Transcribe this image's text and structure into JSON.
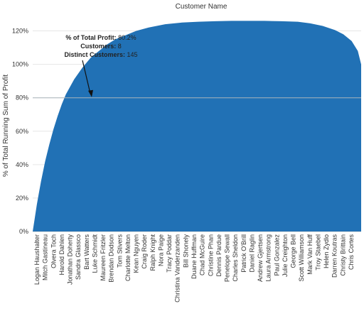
{
  "chart_data": {
    "type": "area",
    "title": "Customer Name",
    "xlabel": "",
    "ylabel": "% of Total Running Sum of Profit",
    "ylim": [
      0,
      130
    ],
    "yticks": [
      0,
      20,
      40,
      60,
      80,
      100,
      120
    ],
    "ytick_labels": [
      "0%",
      "20%",
      "40%",
      "60%",
      "80%",
      "100%",
      "120%"
    ],
    "reference_line": 80,
    "color": "#2171b5",
    "reference_line_color": "#a9b4bb",
    "x_labels": [
      "Logan Haushalter",
      "Mitch Gastineau",
      "Olvera Toch",
      "Harold Dahlen",
      "Jonathan Doherty",
      "Sandra Glassco",
      "Bart Watters",
      "Luke Schmidt",
      "Maureen Fritzler",
      "Brendan Dodson",
      "Tom Stivers",
      "Charlotte Melton",
      "Kean Nguyen",
      "Craig Roder",
      "Ralph Knight",
      "Nora Paige",
      "Tracy Poddar",
      "Christina Vanderzanden",
      "Bill Shonely",
      "Duane Huffman",
      "Chad McGuire",
      "Christine Phan",
      "Dennis Pardue",
      "Penelope Sewall",
      "Charles Sheldon",
      "Patrick O'Brill",
      "Daniel Raglin",
      "Andrew Gjertsen",
      "Laura Armstrong",
      "Paul Gonzalez",
      "Julie Creighton",
      "George Bell",
      "Scott Williamson",
      "Mark Van Huff",
      "Troy Staebel",
      "Helen Zydlo",
      "Darren Koutras",
      "Christy Brittain",
      "Chris Cortes"
    ],
    "x": [
      0,
      5,
      10,
      15,
      20,
      25,
      30,
      40,
      50,
      60,
      70,
      80,
      100,
      120,
      140,
      160,
      180,
      200,
      220,
      250,
      280,
      320,
      360,
      400,
      440,
      480,
      520,
      560,
      600,
      640,
      670,
      700,
      730,
      750,
      770,
      785,
      793
    ],
    "values": [
      0,
      8,
      16,
      23,
      30,
      36,
      42,
      52,
      61,
      69,
      76,
      82,
      91,
      98,
      104,
      108,
      112,
      115,
      117,
      120,
      122,
      124,
      125,
      125.5,
      125.8,
      126,
      126,
      126,
      125.8,
      125.5,
      124.5,
      123,
      120.5,
      118,
      114,
      108,
      100
    ],
    "annotation": {
      "lines": [
        {
          "label": "% of Total Profit:",
          "value": "80.2%"
        },
        {
          "label": "Customers:",
          "value": "8"
        },
        {
          "label": "Distinct Customers:",
          "value": "145"
        }
      ],
      "target_y": 80
    }
  }
}
